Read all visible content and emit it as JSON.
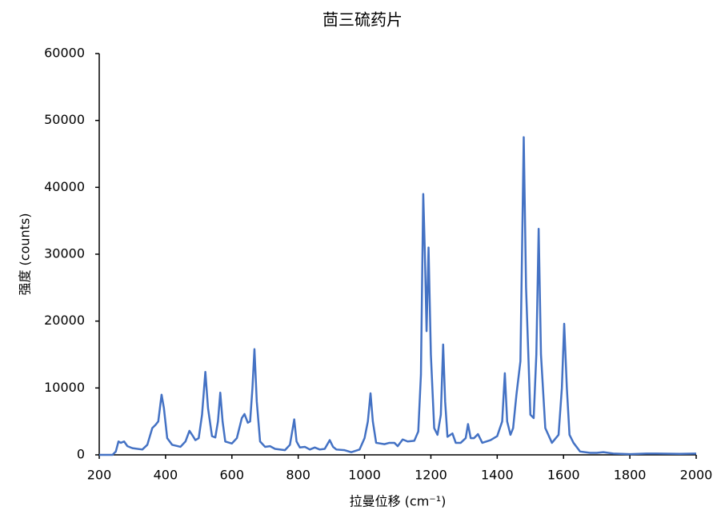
{
  "chart_data": {
    "type": "line",
    "title": "茴三硫药片",
    "x_label": "拉曼位移 (cm⁻¹)",
    "y_label": "强度 (counts)",
    "color": "#4472c4",
    "grid": false,
    "xlim": [
      200,
      2000
    ],
    "xticks": [
      200,
      400,
      600,
      800,
      1000,
      1200,
      1400,
      1600,
      1800,
      2000
    ],
    "ylim": [
      0,
      60000
    ],
    "yticks": [
      0,
      10000,
      20000,
      30000,
      40000,
      50000,
      60000
    ],
    "x": [
      200,
      240,
      250,
      258,
      265,
      275,
      285,
      300,
      330,
      345,
      360,
      370,
      378,
      388,
      395,
      405,
      420,
      445,
      460,
      472,
      480,
      490,
      500,
      510,
      520,
      528,
      540,
      550,
      558,
      565,
      572,
      580,
      600,
      615,
      630,
      638,
      648,
      655,
      662,
      668,
      675,
      685,
      700,
      715,
      730,
      760,
      775,
      788,
      795,
      805,
      820,
      835,
      850,
      865,
      880,
      895,
      905,
      915,
      940,
      960,
      985,
      1000,
      1010,
      1018,
      1025,
      1035,
      1060,
      1075,
      1090,
      1100,
      1115,
      1130,
      1150,
      1162,
      1170,
      1177,
      1182,
      1187,
      1193,
      1200,
      1210,
      1220,
      1230,
      1237,
      1243,
      1250,
      1265,
      1275,
      1290,
      1305,
      1312,
      1320,
      1330,
      1342,
      1355,
      1380,
      1400,
      1415,
      1423,
      1430,
      1440,
      1448,
      1458,
      1470,
      1480,
      1487,
      1500,
      1510,
      1518,
      1525,
      1532,
      1545,
      1565,
      1585,
      1595,
      1602,
      1610,
      1618,
      1630,
      1650,
      1680,
      1700,
      1720,
      1750,
      1800,
      1850,
      1880,
      1950,
      2000
    ],
    "values": [
      0,
      0,
      500,
      2000,
      1800,
      2000,
      1300,
      1000,
      800,
      1500,
      4000,
      4500,
      5000,
      9000,
      7000,
      2500,
      1500,
      1200,
      2000,
      3600,
      3000,
      2200,
      2500,
      6000,
      12400,
      7000,
      2800,
      2600,
      5000,
      9300,
      5000,
      2000,
      1700,
      2500,
      5500,
      6100,
      4800,
      5000,
      10000,
      15800,
      8000,
      2000,
      1200,
      1300,
      900,
      700,
      1500,
      5300,
      2000,
      1100,
      1200,
      800,
      1100,
      800,
      900,
      2200,
      1200,
      800,
      700,
      400,
      800,
      2500,
      5000,
      9200,
      5000,
      1800,
      1600,
      1800,
      1800,
      1300,
      2300,
      2000,
      2100,
      3500,
      12000,
      39000,
      30000,
      18500,
      31000,
      15000,
      4000,
      3000,
      6000,
      16500,
      8000,
      2700,
      3200,
      1800,
      1800,
      2500,
      4600,
      2500,
      2500,
      3100,
      1800,
      2200,
      2800,
      5000,
      12200,
      5000,
      3000,
      4000,
      9000,
      14000,
      47500,
      25000,
      6000,
      5500,
      15000,
      33800,
      15000,
      4000,
      1800,
      3000,
      10000,
      19600,
      10000,
      3000,
      1800,
      500,
      300,
      300,
      400,
      200,
      100,
      200,
      200,
      150,
      200
    ]
  }
}
